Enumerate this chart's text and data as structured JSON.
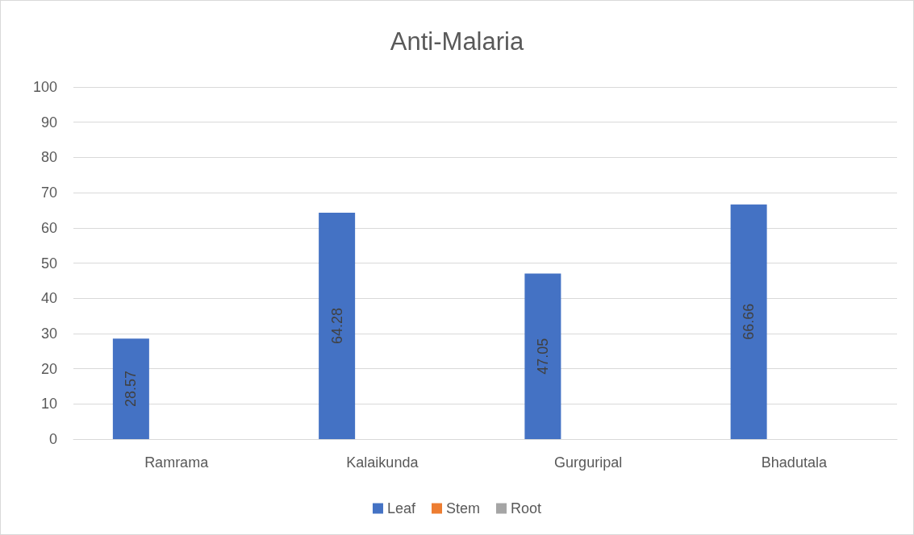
{
  "chart_data": {
    "type": "bar",
    "title": "Anti-Malaria",
    "categories": [
      "Ramrama",
      "Kalaikunda",
      "Gurguripal",
      "Bhadutala"
    ],
    "series": [
      {
        "name": "Leaf",
        "color": "#4472c4",
        "values": [
          28.57,
          64.28,
          47.05,
          66.66
        ],
        "value_labels": [
          "28.57",
          "64.28",
          "47.05",
          "66.66"
        ]
      },
      {
        "name": "Stem",
        "color": "#ed7d31",
        "values": [
          0,
          0,
          0,
          0
        ]
      },
      {
        "name": "Root",
        "color": "#a5a5a5",
        "values": [
          0,
          0,
          0,
          0
        ]
      }
    ],
    "ylim": [
      0,
      100
    ],
    "yticks": [
      0,
      10,
      20,
      30,
      40,
      50,
      60,
      70,
      80,
      90,
      100
    ],
    "grid": "y",
    "legend": "bottom"
  }
}
